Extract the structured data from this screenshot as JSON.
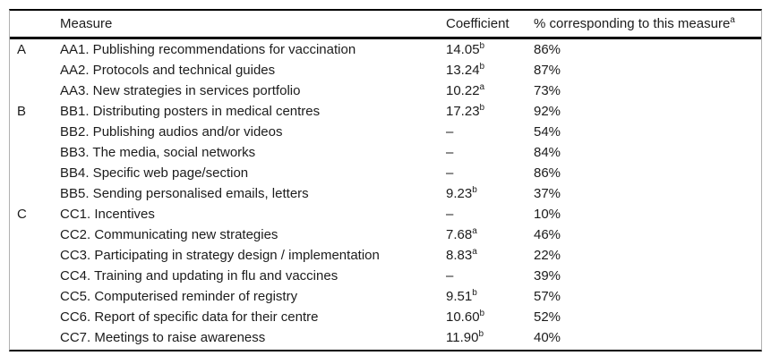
{
  "table": {
    "headers": {
      "group": "",
      "measure": "Measure",
      "coefficient": "Coefficient",
      "percent": "% corresponding to this measure",
      "percent_sup": "a"
    },
    "rows": [
      {
        "group": "A",
        "measure": "AA1. Publishing recommendations for vaccination",
        "coef": "14.05",
        "coef_sup": "b",
        "percent": "86%"
      },
      {
        "group": "",
        "measure": "AA2. Protocols and technical guides",
        "coef": "13.24",
        "coef_sup": "b",
        "percent": "87%"
      },
      {
        "group": "",
        "measure": "AA3. New strategies in services portfolio",
        "coef": "10.22",
        "coef_sup": "a",
        "percent": "73%"
      },
      {
        "group": "B",
        "measure": "BB1. Distributing posters in medical centres",
        "coef": "17.23",
        "coef_sup": "b",
        "percent": "92%"
      },
      {
        "group": "",
        "measure": "BB2. Publishing audios and/or videos",
        "coef": "–",
        "coef_sup": "",
        "percent": "54%"
      },
      {
        "group": "",
        "measure": "BB3. The media, social networks",
        "coef": "–",
        "coef_sup": "",
        "percent": "84%"
      },
      {
        "group": "",
        "measure": "BB4. Specific web page/section",
        "coef": "–",
        "coef_sup": "",
        "percent": "86%"
      },
      {
        "group": "",
        "measure": "BB5. Sending personalised emails, letters",
        "coef": "9.23",
        "coef_sup": "b",
        "percent": "37%"
      },
      {
        "group": "C",
        "measure": "CC1. Incentives",
        "coef": "–",
        "coef_sup": "",
        "percent": "10%"
      },
      {
        "group": "",
        "measure": "CC2. Communicating new strategies",
        "coef": "7.68",
        "coef_sup": "a",
        "percent": "46%"
      },
      {
        "group": "",
        "measure": "CC3. Participating in strategy design / implementation",
        "coef": "8.83",
        "coef_sup": "a",
        "percent": "22%"
      },
      {
        "group": "",
        "measure": "CC4. Training and updating in flu and vaccines",
        "coef": "–",
        "coef_sup": "",
        "percent": "39%"
      },
      {
        "group": "",
        "measure": "CC5. Computerised reminder of registry",
        "coef": "9.51",
        "coef_sup": "b",
        "percent": "57%"
      },
      {
        "group": "",
        "measure": "CC6. Report of specific data for their centre",
        "coef": "10.60",
        "coef_sup": "b",
        "percent": "52%"
      },
      {
        "group": "",
        "measure": "CC7. Meetings to raise awareness",
        "coef": "11.90",
        "coef_sup": "b",
        "percent": "40%"
      }
    ]
  }
}
